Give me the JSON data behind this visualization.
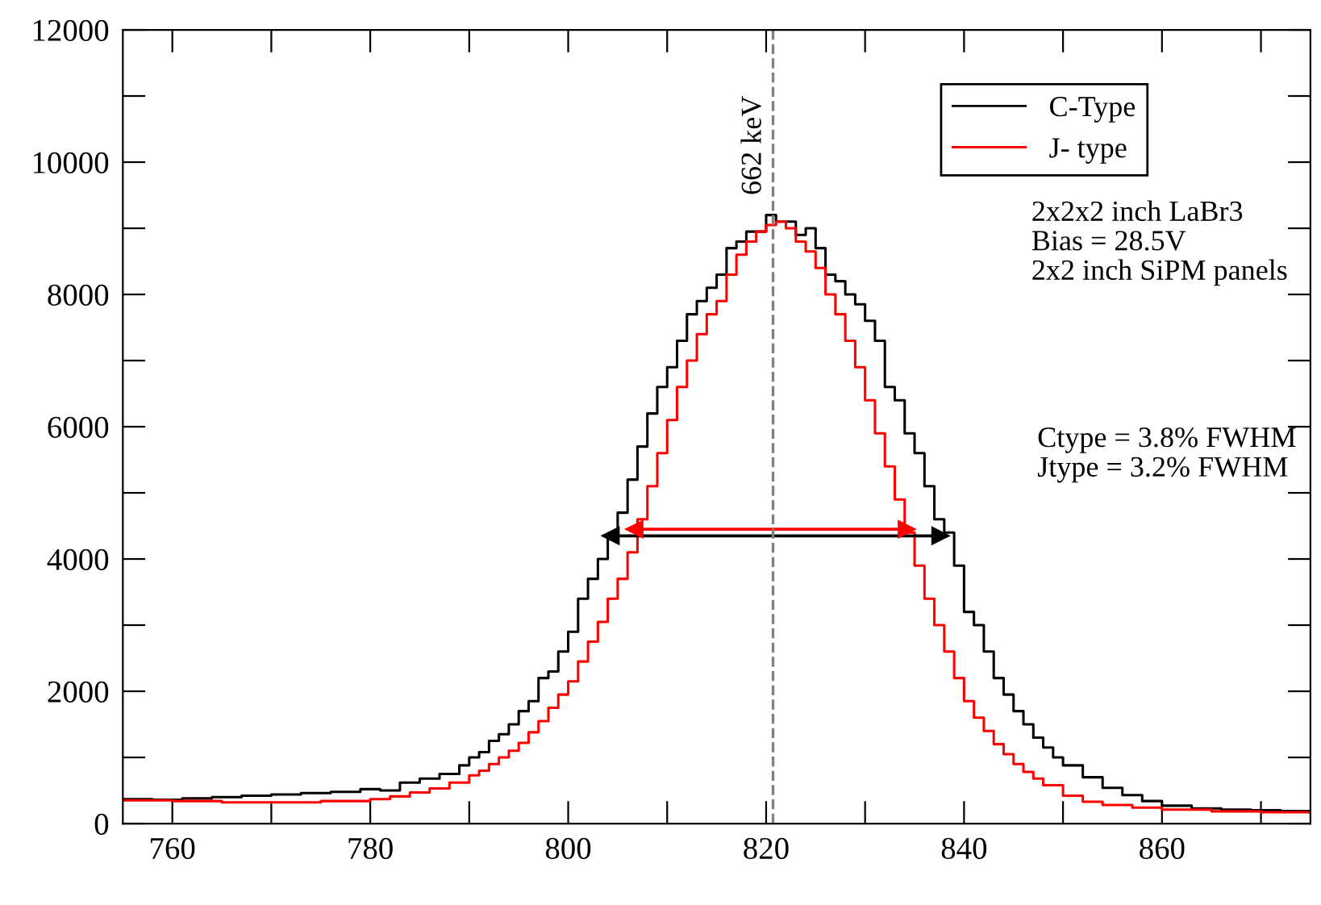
{
  "chart_data": {
    "type": "step",
    "xlim": [
      755,
      875
    ],
    "ylim": [
      0,
      12000
    ],
    "xticks": [
      760,
      {
        "value": 770,
        "label": null
      },
      780,
      {
        "value": 790,
        "label": null
      },
      800,
      {
        "value": 810,
        "label": null
      },
      820,
      {
        "value": 830,
        "label": null
      },
      840,
      {
        "value": 850,
        "label": null
      },
      860,
      {
        "value": 870,
        "label": null
      }
    ],
    "yticks": [
      0,
      {
        "value": 1000,
        "label": null
      },
      2000,
      {
        "value": 3000,
        "label": null
      },
      4000,
      {
        "value": 5000,
        "label": null
      },
      6000,
      {
        "value": 7000,
        "label": null
      },
      8000,
      {
        "value": 9000,
        "label": null
      },
      10000,
      {
        "value": 11000,
        "label": null
      },
      12000
    ],
    "grid": false,
    "legend": "top right",
    "series": [
      {
        "name": "C-Type",
        "color": "#000000",
        "x": [
          755,
          758,
          761,
          764,
          767,
          770,
          773,
          776,
          779,
          781,
          783,
          785,
          787,
          789,
          790,
          791,
          792,
          793,
          794,
          795,
          796,
          797,
          798,
          799,
          800,
          801,
          802,
          803,
          804,
          805,
          806,
          807,
          808,
          809,
          810,
          811,
          812,
          813,
          814,
          815,
          816,
          817,
          818,
          819,
          820,
          821,
          822,
          823,
          824,
          825,
          826,
          827,
          828,
          829,
          830,
          831,
          832,
          833,
          834,
          835,
          836,
          837,
          838,
          839,
          840,
          841,
          842,
          843,
          844,
          845,
          846,
          847,
          848,
          849,
          850,
          852,
          854,
          856,
          858,
          860,
          863,
          866,
          869,
          872,
          875
        ],
        "values": [
          370,
          360,
          380,
          400,
          420,
          440,
          460,
          480,
          520,
          500,
          620,
          680,
          750,
          880,
          1000,
          1080,
          1250,
          1350,
          1500,
          1700,
          1850,
          2200,
          2300,
          2600,
          2900,
          3400,
          3700,
          4000,
          4300,
          4700,
          5200,
          5700,
          6200,
          6600,
          6900,
          7300,
          7700,
          7900,
          8100,
          8300,
          8700,
          8800,
          8950,
          8950,
          9200,
          9100,
          9100,
          8900,
          9000,
          8700,
          8300,
          8200,
          8000,
          7850,
          7600,
          7300,
          6600,
          6400,
          5900,
          5600,
          5100,
          4600,
          4400,
          3900,
          3200,
          3000,
          2600,
          2200,
          1950,
          1700,
          1500,
          1300,
          1150,
          1000,
          880,
          700,
          540,
          430,
          340,
          270,
          230,
          210,
          200,
          190,
          180
        ]
      },
      {
        "name": "J- type",
        "color": "#ff0000",
        "x": [
          755,
          760,
          765,
          770,
          775,
          780,
          782,
          784,
          786,
          788,
          790,
          791,
          792,
          793,
          794,
          795,
          796,
          797,
          798,
          799,
          800,
          801,
          802,
          803,
          804,
          805,
          806,
          807,
          808,
          809,
          810,
          811,
          812,
          813,
          814,
          815,
          816,
          817,
          818,
          819,
          820,
          821,
          822,
          823,
          824,
          825,
          826,
          827,
          828,
          829,
          830,
          831,
          832,
          833,
          834,
          835,
          836,
          837,
          838,
          839,
          840,
          841,
          842,
          843,
          844,
          845,
          846,
          847,
          848,
          850,
          852,
          854,
          857,
          860,
          865,
          870,
          875
        ],
        "values": [
          350,
          340,
          320,
          320,
          340,
          370,
          410,
          470,
          530,
          620,
          730,
          800,
          900,
          1000,
          1100,
          1220,
          1380,
          1550,
          1750,
          1950,
          2150,
          2450,
          2750,
          3050,
          3400,
          3700,
          4100,
          4600,
          5100,
          5600,
          6100,
          6600,
          7000,
          7400,
          7700,
          7900,
          8300,
          8600,
          8800,
          8950,
          9050,
          9100,
          9000,
          8800,
          8650,
          8400,
          8000,
          7700,
          7300,
          6900,
          6400,
          5900,
          5400,
          4900,
          4400,
          3900,
          3400,
          3000,
          2600,
          2200,
          1850,
          1600,
          1400,
          1200,
          1050,
          900,
          780,
          680,
          580,
          420,
          330,
          280,
          240,
          210,
          185,
          170,
          160
        ]
      },
      {
        "type": "line",
        "color": "#000000",
        "marker": "triangle",
        "x": [
          804.3,
          837.6
        ],
        "values": [
          4350,
          4350
        ]
      },
      {
        "type": "line",
        "color": "#ff0000",
        "marker": "triangle",
        "x": [
          806.7,
          834.2
        ],
        "values": [
          4450,
          4450
        ]
      }
    ],
    "ref_lines": [
      {
        "axis": "x",
        "value": 820.7,
        "label": "662 keV",
        "color": "#808080",
        "line_style": "dashed"
      }
    ],
    "annotations": [
      "2x2x2 inch LaBr3\nBias = 28.5V\n2x2 inch SiPM panels",
      "Ctype = 3.8% FWHM\nJtype = 3.2% FWHM"
    ]
  }
}
